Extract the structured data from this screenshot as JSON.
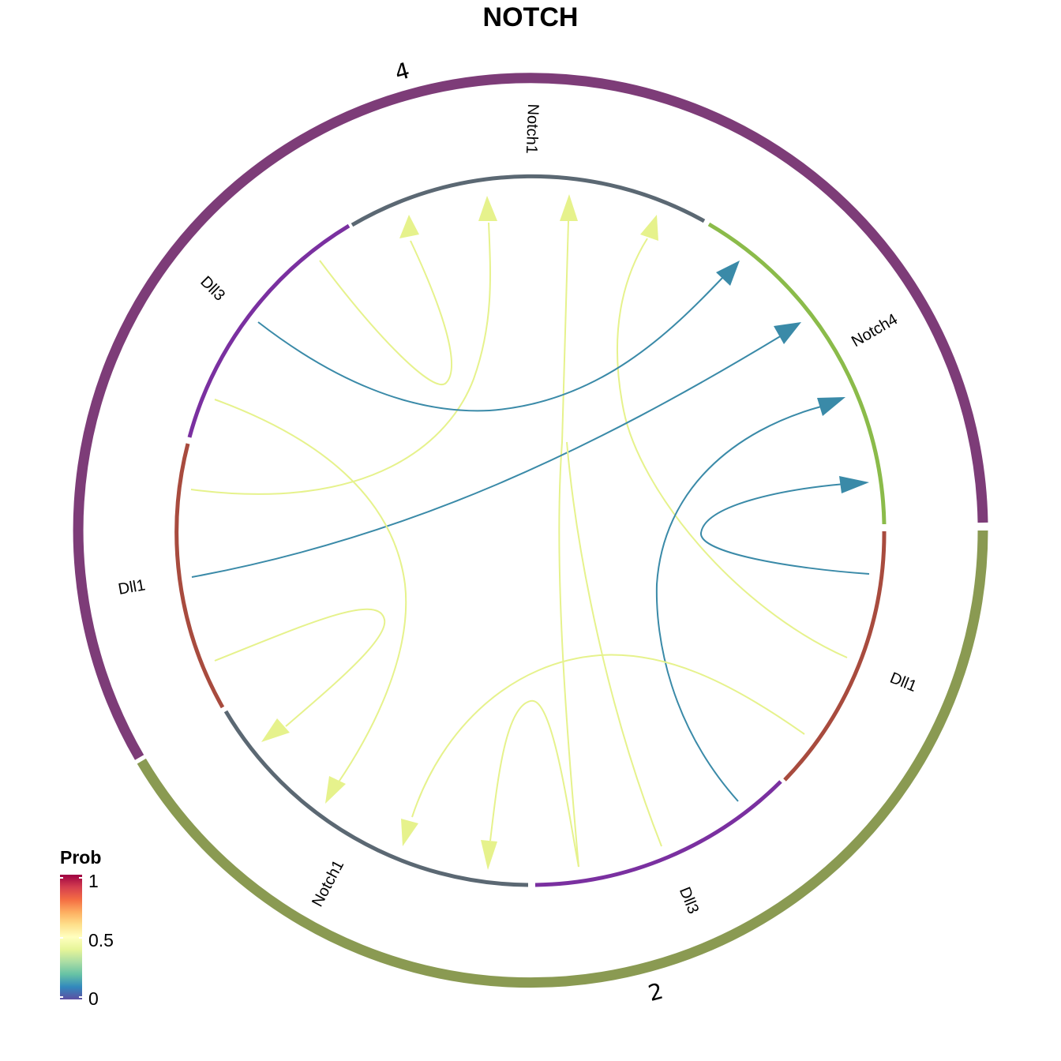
{
  "title": "NOTCH",
  "groups": [
    {
      "name": "4",
      "color": "#7d3c78"
    },
    {
      "name": "2",
      "color": "#8a9a52"
    }
  ],
  "sectors": [
    {
      "label": "Notch1",
      "group": "4",
      "color": "#5b6873"
    },
    {
      "label": "Notch4",
      "group": "4",
      "color": "#8bbb4a"
    },
    {
      "label": "Dll1",
      "group": "2",
      "color": "#a84b3e"
    },
    {
      "label": "Dll3",
      "group": "2",
      "color": "#7a30a0"
    },
    {
      "label": "Notch1",
      "group": "2",
      "color": "#5b6873"
    },
    {
      "label": "Dll1",
      "group": "4",
      "color": "#a84b3e"
    },
    {
      "label": "Dll3",
      "group": "4",
      "color": "#7a30a0"
    }
  ],
  "links": [
    {
      "from": "Dll3 (4)",
      "to": "Notch1 (4)",
      "prob": 0.5,
      "color": "#e6f28c"
    },
    {
      "from": "Dll1 (4)",
      "to": "Notch1 (4)",
      "prob": 0.5,
      "color": "#e6f28c"
    },
    {
      "from": "Dll3 (2)",
      "to": "Notch1 (4)",
      "prob": 0.5,
      "color": "#e6f28c"
    },
    {
      "from": "Dll1 (2)",
      "to": "Notch1 (4)",
      "prob": 0.5,
      "color": "#e6f28c"
    },
    {
      "from": "Dll3 (4)",
      "to": "Notch4 (4)",
      "prob": 0.15,
      "color": "#3a8aa8"
    },
    {
      "from": "Dll1 (4)",
      "to": "Notch4 (4)",
      "prob": 0.15,
      "color": "#3a8aa8"
    },
    {
      "from": "Dll3 (2)",
      "to": "Notch4 (4)",
      "prob": 0.15,
      "color": "#3a8aa8"
    },
    {
      "from": "Dll1 (2)",
      "to": "Notch4 (4)",
      "prob": 0.15,
      "color": "#3a8aa8"
    },
    {
      "from": "Dll3 (4)",
      "to": "Notch1 (2)",
      "prob": 0.5,
      "color": "#e6f28c"
    },
    {
      "from": "Dll1 (4)",
      "to": "Notch1 (2)",
      "prob": 0.5,
      "color": "#e6f28c"
    },
    {
      "from": "Dll3 (2)",
      "to": "Notch1 (2)",
      "prob": 0.5,
      "color": "#e6f28c"
    },
    {
      "from": "Dll1 (2)",
      "to": "Notch1 (2)",
      "prob": 0.5,
      "color": "#e6f28c"
    }
  ],
  "legend": {
    "title": "Prob",
    "ticks": [
      "1",
      "0.5",
      "0"
    ],
    "colors": [
      "#9e0142",
      "#d53e4f",
      "#f46d43",
      "#fdae61",
      "#fee08b",
      "#ffffbf",
      "#e6f598",
      "#abdda4",
      "#66c2a5",
      "#3288bd",
      "#5e4fa2"
    ]
  }
}
